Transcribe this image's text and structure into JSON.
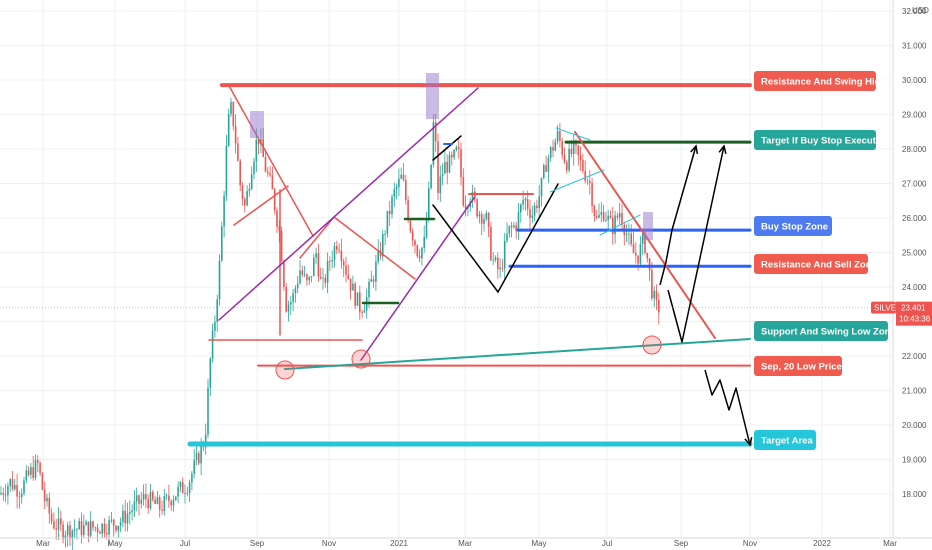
{
  "chart_data": {
    "type": "candlestick",
    "currency": "USD",
    "y_range": [
      16.9,
      32.3
    ],
    "y_ticks": [
      "18.000",
      "19.000",
      "20.000",
      "21.000",
      "22.000",
      "23.000",
      "24.000",
      "25.000",
      "26.000",
      "27.000",
      "28.000",
      "29.000",
      "30.000",
      "31.000",
      "32.000"
    ],
    "x_ticks": [
      "Mar",
      "May",
      "Jul",
      "Sep",
      "Nov",
      "2021",
      "Mar",
      "May",
      "Jul",
      "Sep",
      "Nov",
      "2022",
      "Mar"
    ],
    "symbol": "SILVER",
    "last_price": "23.401",
    "countdown": "10:43:36",
    "key_levels": [
      {
        "name": "Resistance And Swing High",
        "value": 29.85,
        "color": "#ef5350"
      },
      {
        "name": "Target If Buy Stop Execute",
        "value": 28.2,
        "color": "#1b5e20"
      },
      {
        "name": "Buy Stop Zone",
        "value": 25.65,
        "color": "#2962ff"
      },
      {
        "name": "Resistance And Sell Zone",
        "value": 24.6,
        "color": "#2962ff"
      },
      {
        "name": "Support And Swing Low  Zone",
        "value": 22.5,
        "color": "#26a69a"
      },
      {
        "name": "Sep, 20 Low Price",
        "value": 21.72,
        "color": "#ef5350"
      },
      {
        "name": "Target Area",
        "value": 19.45,
        "color": "#26c6da"
      }
    ],
    "labels": [
      {
        "text": "Resistance And Swing High",
        "color": "#f05b50"
      },
      {
        "text": "Target If Buy Stop Execute",
        "color": "#26a69a"
      },
      {
        "text": "Buy Stop Zone",
        "color": "#4f7bf0"
      },
      {
        "text": "Resistance And Sell Zone",
        "color": "#f05b50"
      },
      {
        "text": "Support And Swing Low  Zone",
        "color": "#26a69a"
      },
      {
        "text": "Sep, 20 Low Price",
        "color": "#f05b50"
      },
      {
        "text": "Target Area",
        "color": "#26c6da"
      }
    ]
  },
  "colors": {
    "up": "#26a69a",
    "down": "#ef5350",
    "grid": "#eef0f3",
    "axis_text": "#555555"
  }
}
